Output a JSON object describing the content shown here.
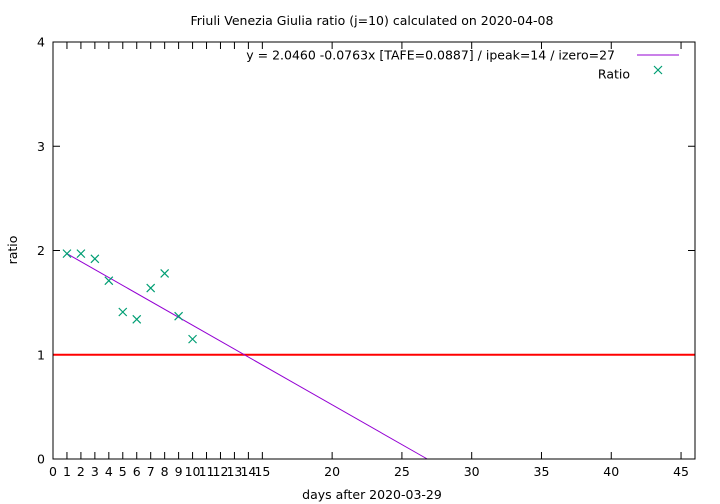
{
  "chart_data": {
    "type": "scatter",
    "title": "Friuli Venezia Giulia ratio (j=10) calculated on 2020-04-08",
    "xlabel": "days after 2020-03-29",
    "ylabel": "ratio",
    "xlim": [
      0,
      46
    ],
    "ylim": [
      0,
      4
    ],
    "x_ticks": [
      0,
      1,
      2,
      3,
      4,
      5,
      6,
      7,
      8,
      9,
      10,
      11,
      12,
      13,
      14,
      15,
      20,
      25,
      30,
      35,
      40,
      45
    ],
    "y_ticks": [
      0,
      1,
      2,
      3,
      4
    ],
    "grid": false,
    "legend_position": "top-right",
    "series": [
      {
        "name": "Ratio",
        "kind": "scatter",
        "marker": "x",
        "color": "#009e73",
        "x": [
          1,
          2,
          3,
          4,
          5,
          6,
          7,
          8,
          9,
          10
        ],
        "y": [
          1.97,
          1.97,
          1.92,
          1.71,
          1.41,
          1.34,
          1.64,
          1.78,
          1.37,
          1.15
        ]
      },
      {
        "name": "y = 2.0460 -0.0763x  [TAFE=0.0887] / ipeak=14 / izero=27",
        "kind": "line",
        "color": "#9400d3",
        "intercept": 2.046,
        "slope": -0.0763
      }
    ],
    "reference_line": {
      "y": 1,
      "color": "#ff0000"
    }
  }
}
